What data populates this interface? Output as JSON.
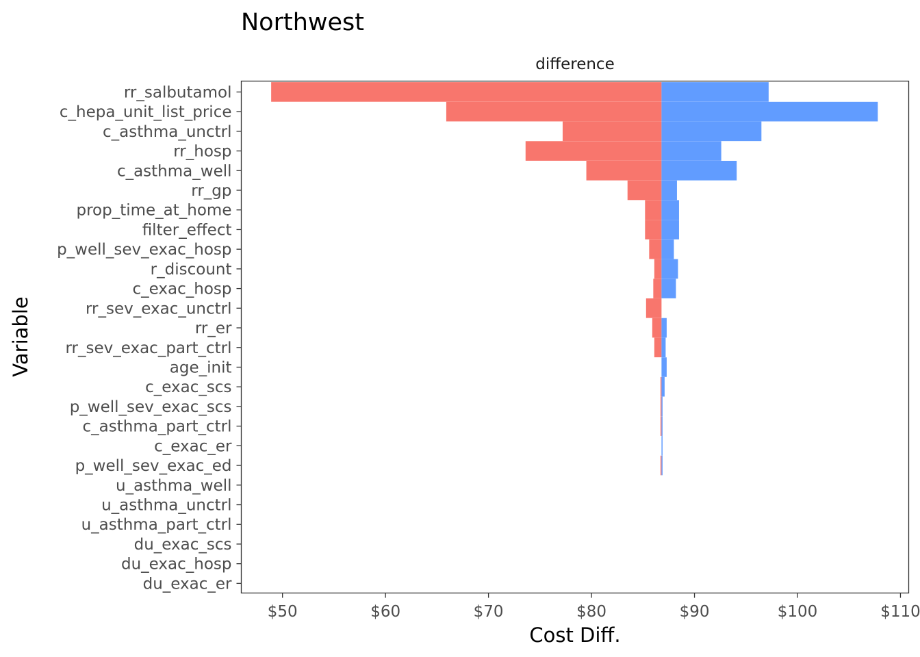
{
  "chart_data": {
    "type": "bar",
    "orientation": "horizontal",
    "title": "Northwest",
    "facet_label": "difference",
    "xlabel": "Cost Diff.",
    "ylabel": "Variable",
    "base_value": 86.8,
    "xlim": [
      46.0,
      110.8
    ],
    "xticks": [
      50,
      60,
      70,
      80,
      90,
      100,
      110
    ],
    "xtick_labels": [
      "$50",
      "$60",
      "$70",
      "$80",
      "$90",
      "$100",
      "$110"
    ],
    "grid": false,
    "legend": "none",
    "colors": {
      "low": "#F8766D",
      "high": "#619CFF"
    },
    "categories": [
      "rr_salbutamol",
      "c_hepa_unit_list_price",
      "c_asthma_unctrl",
      "rr_hosp",
      "c_asthma_well",
      "rr_gp",
      "prop_time_at_home",
      "filter_effect",
      "p_well_sev_exac_hosp",
      "r_discount",
      "c_exac_hosp",
      "rr_sev_exac_unctrl",
      "rr_er",
      "rr_sev_exac_part_ctrl",
      "age_init",
      "c_exac_scs",
      "p_well_sev_exac_scs",
      "c_asthma_part_ctrl",
      "c_exac_er",
      "p_well_sev_exac_ed",
      "u_asthma_well",
      "u_asthma_unctrl",
      "u_asthma_part_ctrl",
      "du_exac_scs",
      "du_exac_hosp",
      "du_exac_er"
    ],
    "series": [
      {
        "values": [
          48.9,
          65.9,
          77.2,
          73.6,
          79.5,
          83.5,
          85.2,
          85.2,
          85.6,
          86.1,
          86.0,
          85.3,
          85.9,
          86.1,
          86.8,
          86.7,
          86.7,
          86.7,
          86.8,
          86.7,
          86.8,
          86.8,
          86.8,
          86.8,
          86.8,
          86.8
        ]
      },
      {
        "values": [
          97.2,
          107.8,
          96.5,
          92.6,
          94.1,
          88.3,
          88.5,
          88.5,
          88.0,
          88.4,
          88.2,
          86.8,
          87.3,
          87.2,
          87.3,
          87.1,
          86.9,
          86.9,
          86.9,
          86.9,
          86.8,
          86.8,
          86.8,
          86.8,
          86.8,
          86.8
        ]
      }
    ]
  }
}
